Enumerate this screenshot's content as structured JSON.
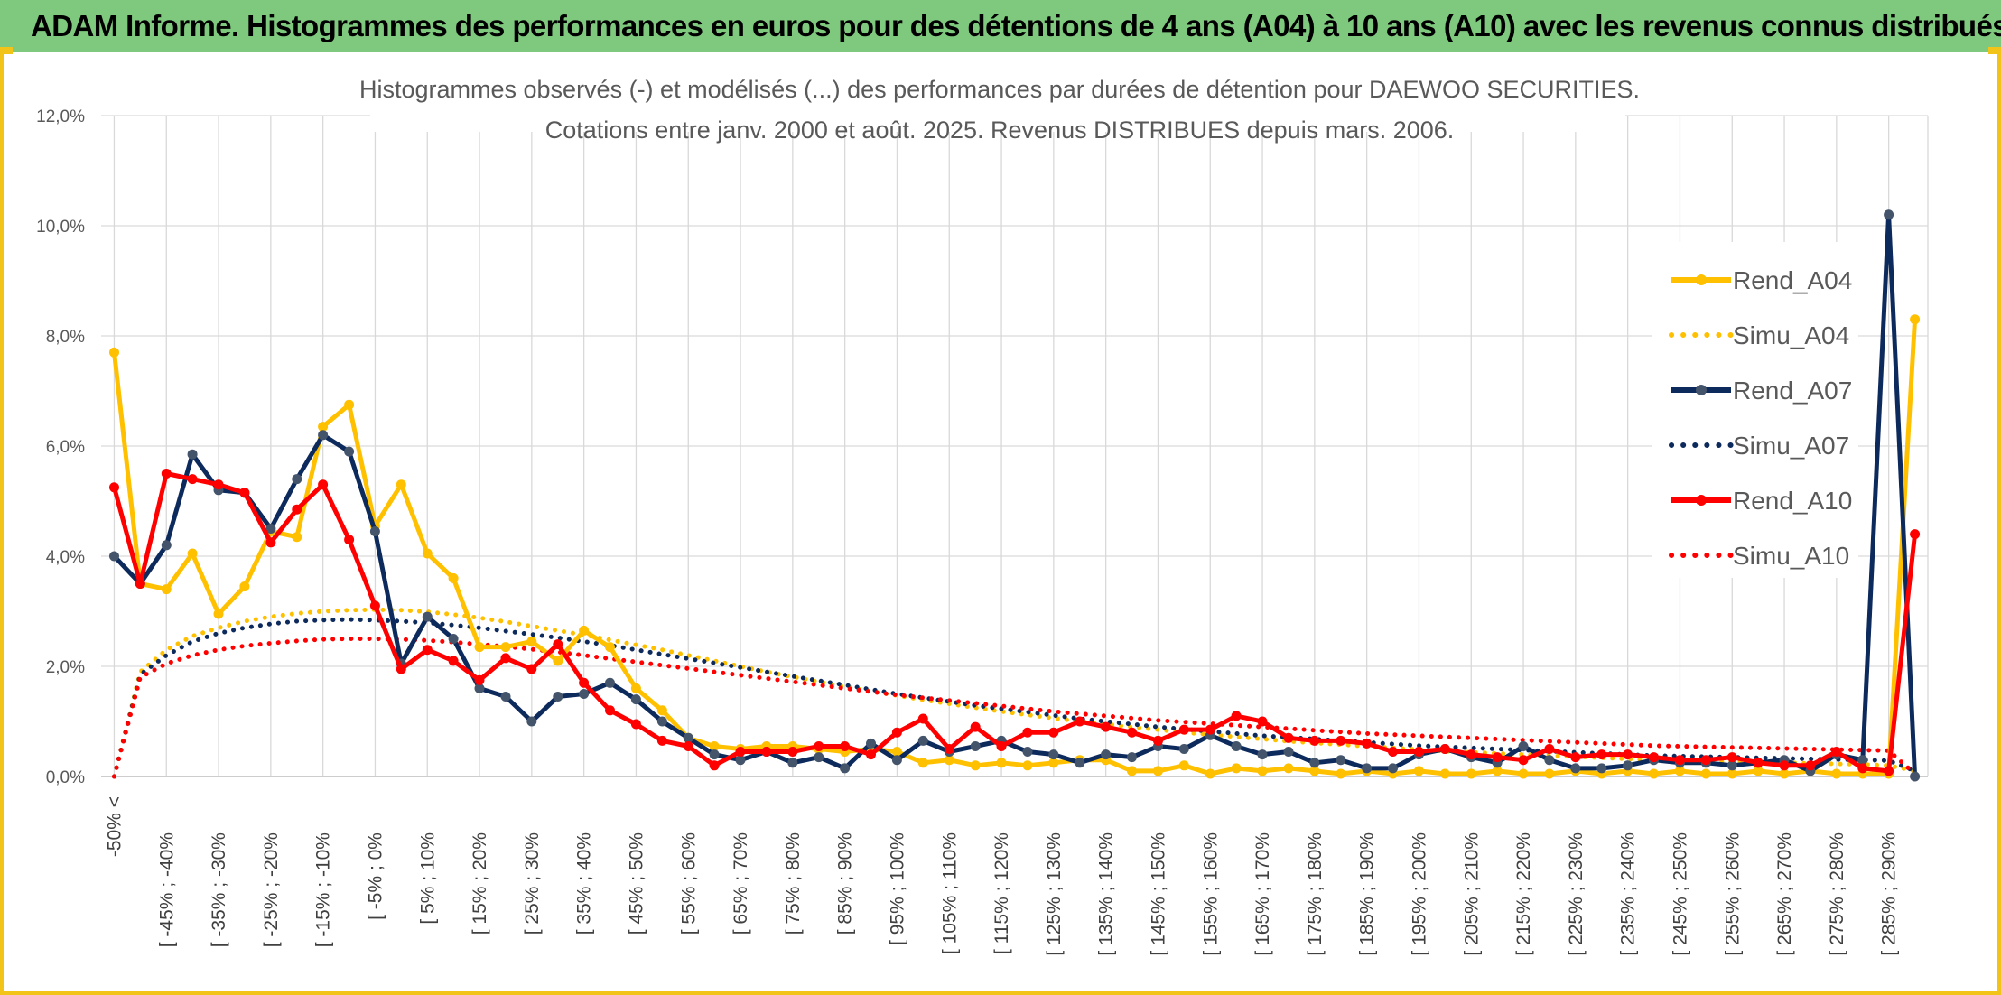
{
  "header": {
    "title": "ADAM Informe. Histogrammes des performances en euros pour des détentions de 4 ans (A04) à 10 ans (A10) avec les revenus connus distribués"
  },
  "chart_data": {
    "type": "line",
    "title": "Histogrammes observés (-) et modélisés (...) des performances par durées de détention pour DAEWOO SECURITIES.",
    "subtitle": "Cotations entre janv. 2000 et août. 2025. Revenus DISTRIBUES depuis mars. 2006.",
    "xlabel": "",
    "ylabel": "",
    "ylim": [
      0,
      12
    ],
    "y_ticks": [
      "0,0%",
      "2,0%",
      "4,0%",
      "6,0%",
      "8,0%",
      "10,0%",
      "12,0%"
    ],
    "grid": true,
    "legend_position": "right",
    "x_tick_labels": [
      "-50% <",
      "[ -45% ; -40%",
      "[ -35% ; -30%",
      "[ -25% ; -20%",
      "[ -15% ; -10%",
      "[ -5% ; 0%",
      "[ 5% ; 10%",
      "[ 15% ; 20%",
      "[ 25% ; 30%",
      "[ 35% ; 40%",
      "[ 45% ; 50%",
      "[ 55% ; 60%",
      "[ 65% ; 70%",
      "[ 75% ; 80%",
      "[ 85% ; 90%",
      "[ 95% ; 100%",
      "[ 105% ; 110%",
      "[ 115% ; 120%",
      "[ 125% ; 130%",
      "[ 135% ; 140%",
      "[ 145% ; 150%",
      "[ 155% ; 160%",
      "[ 165% ; 170%",
      "[ 175% ; 180%",
      "[ 185% ; 190%",
      "[ 195% ; 200%",
      "[ 205% ; 210%",
      "[ 215% ; 220%",
      "[ 225% ; 230%",
      "[ 235% ; 240%",
      "[ 245% ; 250%",
      "[ 255% ; 260%",
      "[ 265% ; 270%",
      "[ 275% ; 280%",
      "[ 285% ; 290%"
    ],
    "num_points": 70,
    "series": [
      {
        "name": "Rend_A04",
        "color": "#ffc000",
        "style": "solid",
        "marker": true,
        "values": [
          7.7,
          3.5,
          3.4,
          4.05,
          2.95,
          3.45,
          4.45,
          4.35,
          6.35,
          6.75,
          4.55,
          5.3,
          4.05,
          3.6,
          2.35,
          2.35,
          2.45,
          2.1,
          2.65,
          2.35,
          1.6,
          1.2,
          0.7,
          0.55,
          0.5,
          0.55,
          0.55,
          0.5,
          0.45,
          0.5,
          0.45,
          0.25,
          0.3,
          0.2,
          0.25,
          0.2,
          0.25,
          0.3,
          0.3,
          0.1,
          0.1,
          0.2,
          0.05,
          0.15,
          0.1,
          0.15,
          0.1,
          0.05,
          0.1,
          0.05,
          0.1,
          0.05,
          0.05,
          0.1,
          0.05,
          0.05,
          0.1,
          0.05,
          0.1,
          0.05,
          0.1,
          0.05,
          0.05,
          0.1,
          0.05,
          0.1,
          0.05,
          0.05,
          0.05,
          8.3
        ]
      },
      {
        "name": "Simu_A04",
        "color": "#ffc000",
        "style": "dotted",
        "marker": false,
        "values": [
          0.0,
          1.9,
          2.3,
          2.55,
          2.7,
          2.82,
          2.9,
          2.96,
          3.0,
          3.02,
          3.03,
          3.02,
          2.99,
          2.94,
          2.88,
          2.81,
          2.73,
          2.65,
          2.57,
          2.48,
          2.39,
          2.3,
          2.2,
          2.1,
          2.0,
          1.9,
          1.81,
          1.72,
          1.63,
          1.55,
          1.47,
          1.39,
          1.32,
          1.25,
          1.18,
          1.12,
          1.06,
          1.0,
          0.95,
          0.9,
          0.85,
          0.8,
          0.76,
          0.72,
          0.68,
          0.64,
          0.61,
          0.58,
          0.55,
          0.52,
          0.49,
          0.46,
          0.44,
          0.42,
          0.4,
          0.38,
          0.36,
          0.34,
          0.32,
          0.3,
          0.29,
          0.28,
          0.27,
          0.26,
          0.25,
          0.24,
          0.23,
          0.22,
          0.2,
          0.1
        ]
      },
      {
        "name": "Rend_A07",
        "color": "#0d2a5c",
        "style": "solid",
        "marker": true,
        "values": [
          4.0,
          3.5,
          4.2,
          5.85,
          5.2,
          5.15,
          4.5,
          5.4,
          6.2,
          5.9,
          4.45,
          2.05,
          2.9,
          2.5,
          1.6,
          1.45,
          1.0,
          1.45,
          1.5,
          1.7,
          1.4,
          1.0,
          0.7,
          0.4,
          0.3,
          0.45,
          0.25,
          0.35,
          0.15,
          0.6,
          0.3,
          0.65,
          0.45,
          0.55,
          0.65,
          0.45,
          0.4,
          0.25,
          0.4,
          0.35,
          0.55,
          0.5,
          0.75,
          0.55,
          0.4,
          0.45,
          0.25,
          0.3,
          0.15,
          0.15,
          0.4,
          0.5,
          0.35,
          0.25,
          0.55,
          0.3,
          0.15,
          0.15,
          0.2,
          0.3,
          0.25,
          0.25,
          0.2,
          0.25,
          0.3,
          0.1,
          0.4,
          0.3,
          10.2,
          0.0
        ]
      },
      {
        "name": "Simu_A07",
        "color": "#0d2a5c",
        "style": "dotted",
        "marker": false,
        "values": [
          0.0,
          1.85,
          2.2,
          2.45,
          2.6,
          2.7,
          2.77,
          2.82,
          2.84,
          2.85,
          2.84,
          2.82,
          2.79,
          2.75,
          2.7,
          2.64,
          2.58,
          2.52,
          2.45,
          2.38,
          2.3,
          2.22,
          2.14,
          2.06,
          1.98,
          1.9,
          1.82,
          1.74,
          1.66,
          1.58,
          1.5,
          1.43,
          1.36,
          1.29,
          1.23,
          1.17,
          1.11,
          1.05,
          1.0,
          0.95,
          0.9,
          0.86,
          0.82,
          0.78,
          0.74,
          0.71,
          0.68,
          0.65,
          0.62,
          0.59,
          0.56,
          0.54,
          0.52,
          0.5,
          0.48,
          0.46,
          0.44,
          0.42,
          0.4,
          0.38,
          0.37,
          0.36,
          0.35,
          0.34,
          0.33,
          0.32,
          0.31,
          0.3,
          0.29,
          0.1
        ]
      },
      {
        "name": "Rend_A10",
        "color": "#ff0000",
        "style": "solid",
        "marker": true,
        "values": [
          5.25,
          3.5,
          5.5,
          5.4,
          5.3,
          5.15,
          4.25,
          4.85,
          5.3,
          4.3,
          3.1,
          1.95,
          2.3,
          2.1,
          1.75,
          2.15,
          1.95,
          2.4,
          1.7,
          1.2,
          0.95,
          0.65,
          0.55,
          0.2,
          0.45,
          0.45,
          0.45,
          0.55,
          0.55,
          0.4,
          0.8,
          1.05,
          0.5,
          0.9,
          0.55,
          0.8,
          0.8,
          1.0,
          0.9,
          0.8,
          0.65,
          0.85,
          0.85,
          1.1,
          1.0,
          0.7,
          0.65,
          0.65,
          0.6,
          0.45,
          0.45,
          0.5,
          0.4,
          0.35,
          0.3,
          0.5,
          0.35,
          0.4,
          0.4,
          0.35,
          0.3,
          0.3,
          0.35,
          0.25,
          0.2,
          0.2,
          0.45,
          0.15,
          0.1,
          4.4
        ]
      },
      {
        "name": "Simu_A10",
        "color": "#ff0000",
        "style": "dotted",
        "marker": false,
        "values": [
          0.0,
          1.8,
          2.05,
          2.2,
          2.3,
          2.37,
          2.42,
          2.46,
          2.49,
          2.5,
          2.5,
          2.49,
          2.47,
          2.44,
          2.4,
          2.36,
          2.31,
          2.26,
          2.2,
          2.14,
          2.08,
          2.02,
          1.96,
          1.9,
          1.84,
          1.78,
          1.72,
          1.66,
          1.6,
          1.54,
          1.48,
          1.43,
          1.38,
          1.33,
          1.28,
          1.23,
          1.18,
          1.14,
          1.1,
          1.06,
          1.02,
          0.99,
          0.96,
          0.93,
          0.9,
          0.87,
          0.84,
          0.81,
          0.78,
          0.76,
          0.74,
          0.72,
          0.7,
          0.68,
          0.66,
          0.64,
          0.62,
          0.6,
          0.58,
          0.56,
          0.55,
          0.54,
          0.53,
          0.52,
          0.51,
          0.5,
          0.49,
          0.48,
          0.47,
          0.05
        ]
      }
    ]
  }
}
